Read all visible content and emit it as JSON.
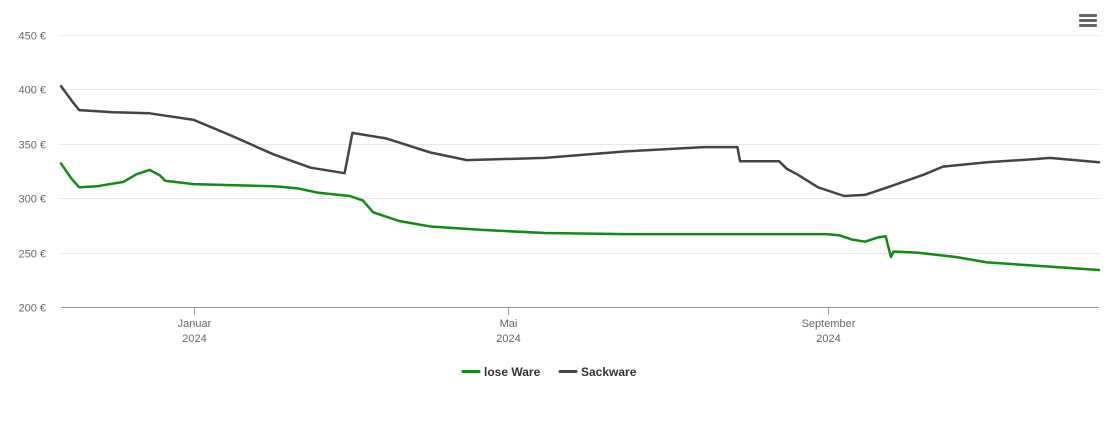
{
  "menu": {
    "icon": "hamburger-menu-icon"
  },
  "chart_data": {
    "type": "line",
    "title": "",
    "xlabel": "",
    "ylabel": "",
    "ylim": [
      200,
      450
    ],
    "y_ticks": [
      200,
      250,
      300,
      350,
      400,
      450
    ],
    "y_tick_labels": [
      "200 €",
      "250 €",
      "300 €",
      "350 €",
      "400 €",
      "450 €"
    ],
    "xlim": [
      "2023-11-11",
      "2024-12-14"
    ],
    "x_ticks": [
      {
        "date": "2024-01-01",
        "month": "Januar",
        "year": "2024"
      },
      {
        "date": "2024-05-01",
        "month": "Mai",
        "year": "2024"
      },
      {
        "date": "2024-09-01",
        "month": "September",
        "year": "2024"
      }
    ],
    "grid": true,
    "legend_position": "bottom-center",
    "series": [
      {
        "name": "lose Ware",
        "color": "#138a12",
        "points": [
          [
            "2023-11-11",
            332
          ],
          [
            "2023-11-15",
            318
          ],
          [
            "2023-11-18",
            310
          ],
          [
            "2023-11-25",
            311
          ],
          [
            "2023-12-05",
            315
          ],
          [
            "2023-12-10",
            322
          ],
          [
            "2023-12-15",
            326
          ],
          [
            "2023-12-19",
            321
          ],
          [
            "2023-12-21",
            316
          ],
          [
            "2024-01-01",
            313
          ],
          [
            "2024-01-15",
            312
          ],
          [
            "2024-02-01",
            311
          ],
          [
            "2024-02-10",
            309
          ],
          [
            "2024-02-18",
            305
          ],
          [
            "2024-03-01",
            302
          ],
          [
            "2024-03-06",
            298
          ],
          [
            "2024-03-10",
            287
          ],
          [
            "2024-03-20",
            279
          ],
          [
            "2024-04-01",
            274
          ],
          [
            "2024-04-20",
            271
          ],
          [
            "2024-05-15",
            268
          ],
          [
            "2024-06-15",
            267
          ],
          [
            "2024-08-31",
            267
          ],
          [
            "2024-09-05",
            266
          ],
          [
            "2024-09-10",
            262
          ],
          [
            "2024-09-15",
            260
          ],
          [
            "2024-09-20",
            264
          ],
          [
            "2024-09-23",
            265
          ],
          [
            "2024-09-25",
            246
          ],
          [
            "2024-09-26",
            251
          ],
          [
            "2024-10-05",
            250
          ],
          [
            "2024-10-20",
            246
          ],
          [
            "2024-11-01",
            241
          ],
          [
            "2024-11-20",
            238
          ],
          [
            "2024-12-14",
            234
          ]
        ]
      },
      {
        "name": "Sackware",
        "color": "#444444",
        "points": [
          [
            "2023-11-11",
            403
          ],
          [
            "2023-11-15",
            390
          ],
          [
            "2023-11-18",
            381
          ],
          [
            "2023-12-01",
            379
          ],
          [
            "2023-12-15",
            378
          ],
          [
            "2024-01-01",
            372
          ],
          [
            "2024-01-15",
            358
          ],
          [
            "2024-02-01",
            340
          ],
          [
            "2024-02-15",
            328
          ],
          [
            "2024-02-28",
            323
          ],
          [
            "2024-03-02",
            360
          ],
          [
            "2024-03-15",
            355
          ],
          [
            "2024-04-01",
            342
          ],
          [
            "2024-04-15",
            335
          ],
          [
            "2024-05-15",
            337
          ],
          [
            "2024-06-15",
            343
          ],
          [
            "2024-07-15",
            347
          ],
          [
            "2024-07-28",
            347
          ],
          [
            "2024-07-29",
            334
          ],
          [
            "2024-08-08",
            334
          ],
          [
            "2024-08-13",
            334
          ],
          [
            "2024-08-16",
            327
          ],
          [
            "2024-08-20",
            322
          ],
          [
            "2024-08-28",
            310
          ],
          [
            "2024-09-07",
            302
          ],
          [
            "2024-09-15",
            303
          ],
          [
            "2024-09-25",
            311
          ],
          [
            "2024-10-08",
            322
          ],
          [
            "2024-10-15",
            329
          ],
          [
            "2024-11-01",
            333
          ],
          [
            "2024-11-20",
            336
          ],
          [
            "2024-11-25",
            337
          ],
          [
            "2024-12-14",
            333
          ]
        ]
      }
    ]
  }
}
